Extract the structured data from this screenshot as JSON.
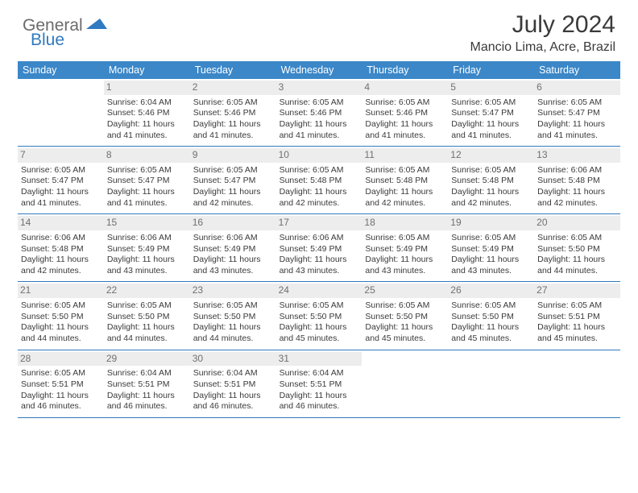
{
  "logo": {
    "part1": "General",
    "part2": "Blue"
  },
  "header": {
    "month": "July 2024",
    "location": "Mancio Lima, Acre, Brazil"
  },
  "dayNames": [
    "Sunday",
    "Monday",
    "Tuesday",
    "Wednesday",
    "Thursday",
    "Friday",
    "Saturday"
  ],
  "colors": {
    "header_bg": "#3b87c8",
    "accent": "#2f7ac0",
    "daynum_bg": "#ededed",
    "text": "#3a3a3a"
  },
  "weeks": [
    [
      {
        "n": "",
        "empty": true
      },
      {
        "n": "1",
        "sr": "Sunrise: 6:04 AM",
        "ss": "Sunset: 5:46 PM",
        "d1": "Daylight: 11 hours",
        "d2": "and 41 minutes."
      },
      {
        "n": "2",
        "sr": "Sunrise: 6:05 AM",
        "ss": "Sunset: 5:46 PM",
        "d1": "Daylight: 11 hours",
        "d2": "and 41 minutes."
      },
      {
        "n": "3",
        "sr": "Sunrise: 6:05 AM",
        "ss": "Sunset: 5:46 PM",
        "d1": "Daylight: 11 hours",
        "d2": "and 41 minutes."
      },
      {
        "n": "4",
        "sr": "Sunrise: 6:05 AM",
        "ss": "Sunset: 5:46 PM",
        "d1": "Daylight: 11 hours",
        "d2": "and 41 minutes."
      },
      {
        "n": "5",
        "sr": "Sunrise: 6:05 AM",
        "ss": "Sunset: 5:47 PM",
        "d1": "Daylight: 11 hours",
        "d2": "and 41 minutes."
      },
      {
        "n": "6",
        "sr": "Sunrise: 6:05 AM",
        "ss": "Sunset: 5:47 PM",
        "d1": "Daylight: 11 hours",
        "d2": "and 41 minutes."
      }
    ],
    [
      {
        "n": "7",
        "sr": "Sunrise: 6:05 AM",
        "ss": "Sunset: 5:47 PM",
        "d1": "Daylight: 11 hours",
        "d2": "and 41 minutes."
      },
      {
        "n": "8",
        "sr": "Sunrise: 6:05 AM",
        "ss": "Sunset: 5:47 PM",
        "d1": "Daylight: 11 hours",
        "d2": "and 41 minutes."
      },
      {
        "n": "9",
        "sr": "Sunrise: 6:05 AM",
        "ss": "Sunset: 5:47 PM",
        "d1": "Daylight: 11 hours",
        "d2": "and 42 minutes."
      },
      {
        "n": "10",
        "sr": "Sunrise: 6:05 AM",
        "ss": "Sunset: 5:48 PM",
        "d1": "Daylight: 11 hours",
        "d2": "and 42 minutes."
      },
      {
        "n": "11",
        "sr": "Sunrise: 6:05 AM",
        "ss": "Sunset: 5:48 PM",
        "d1": "Daylight: 11 hours",
        "d2": "and 42 minutes."
      },
      {
        "n": "12",
        "sr": "Sunrise: 6:05 AM",
        "ss": "Sunset: 5:48 PM",
        "d1": "Daylight: 11 hours",
        "d2": "and 42 minutes."
      },
      {
        "n": "13",
        "sr": "Sunrise: 6:06 AM",
        "ss": "Sunset: 5:48 PM",
        "d1": "Daylight: 11 hours",
        "d2": "and 42 minutes."
      }
    ],
    [
      {
        "n": "14",
        "sr": "Sunrise: 6:06 AM",
        "ss": "Sunset: 5:48 PM",
        "d1": "Daylight: 11 hours",
        "d2": "and 42 minutes."
      },
      {
        "n": "15",
        "sr": "Sunrise: 6:06 AM",
        "ss": "Sunset: 5:49 PM",
        "d1": "Daylight: 11 hours",
        "d2": "and 43 minutes."
      },
      {
        "n": "16",
        "sr": "Sunrise: 6:06 AM",
        "ss": "Sunset: 5:49 PM",
        "d1": "Daylight: 11 hours",
        "d2": "and 43 minutes."
      },
      {
        "n": "17",
        "sr": "Sunrise: 6:06 AM",
        "ss": "Sunset: 5:49 PM",
        "d1": "Daylight: 11 hours",
        "d2": "and 43 minutes."
      },
      {
        "n": "18",
        "sr": "Sunrise: 6:05 AM",
        "ss": "Sunset: 5:49 PM",
        "d1": "Daylight: 11 hours",
        "d2": "and 43 minutes."
      },
      {
        "n": "19",
        "sr": "Sunrise: 6:05 AM",
        "ss": "Sunset: 5:49 PM",
        "d1": "Daylight: 11 hours",
        "d2": "and 43 minutes."
      },
      {
        "n": "20",
        "sr": "Sunrise: 6:05 AM",
        "ss": "Sunset: 5:50 PM",
        "d1": "Daylight: 11 hours",
        "d2": "and 44 minutes."
      }
    ],
    [
      {
        "n": "21",
        "sr": "Sunrise: 6:05 AM",
        "ss": "Sunset: 5:50 PM",
        "d1": "Daylight: 11 hours",
        "d2": "and 44 minutes."
      },
      {
        "n": "22",
        "sr": "Sunrise: 6:05 AM",
        "ss": "Sunset: 5:50 PM",
        "d1": "Daylight: 11 hours",
        "d2": "and 44 minutes."
      },
      {
        "n": "23",
        "sr": "Sunrise: 6:05 AM",
        "ss": "Sunset: 5:50 PM",
        "d1": "Daylight: 11 hours",
        "d2": "and 44 minutes."
      },
      {
        "n": "24",
        "sr": "Sunrise: 6:05 AM",
        "ss": "Sunset: 5:50 PM",
        "d1": "Daylight: 11 hours",
        "d2": "and 45 minutes."
      },
      {
        "n": "25",
        "sr": "Sunrise: 6:05 AM",
        "ss": "Sunset: 5:50 PM",
        "d1": "Daylight: 11 hours",
        "d2": "and 45 minutes."
      },
      {
        "n": "26",
        "sr": "Sunrise: 6:05 AM",
        "ss": "Sunset: 5:50 PM",
        "d1": "Daylight: 11 hours",
        "d2": "and 45 minutes."
      },
      {
        "n": "27",
        "sr": "Sunrise: 6:05 AM",
        "ss": "Sunset: 5:51 PM",
        "d1": "Daylight: 11 hours",
        "d2": "and 45 minutes."
      }
    ],
    [
      {
        "n": "28",
        "sr": "Sunrise: 6:05 AM",
        "ss": "Sunset: 5:51 PM",
        "d1": "Daylight: 11 hours",
        "d2": "and 46 minutes."
      },
      {
        "n": "29",
        "sr": "Sunrise: 6:04 AM",
        "ss": "Sunset: 5:51 PM",
        "d1": "Daylight: 11 hours",
        "d2": "and 46 minutes."
      },
      {
        "n": "30",
        "sr": "Sunrise: 6:04 AM",
        "ss": "Sunset: 5:51 PM",
        "d1": "Daylight: 11 hours",
        "d2": "and 46 minutes."
      },
      {
        "n": "31",
        "sr": "Sunrise: 6:04 AM",
        "ss": "Sunset: 5:51 PM",
        "d1": "Daylight: 11 hours",
        "d2": "and 46 minutes."
      },
      {
        "n": "",
        "empty": true
      },
      {
        "n": "",
        "empty": true
      },
      {
        "n": "",
        "empty": true
      }
    ]
  ]
}
